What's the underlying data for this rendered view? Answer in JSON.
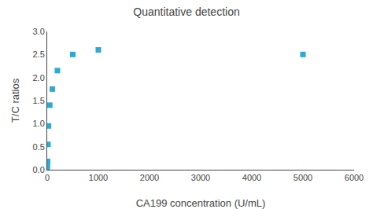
{
  "chart_data": {
    "type": "scatter",
    "title": "Quantitative detection",
    "x_label": "CA199 concentration (U/mL)",
    "y_label": "T/C ratios",
    "x": [
      1,
      3,
      8,
      15,
      25,
      50,
      100,
      200,
      500,
      1000,
      5000
    ],
    "values": [
      0.05,
      0.1,
      0.18,
      0.55,
      0.95,
      1.4,
      1.75,
      2.15,
      2.5,
      2.6,
      2.5
    ],
    "color": "#29ABD4",
    "marker": "square",
    "xlim": [
      0,
      6000
    ],
    "xticks": [
      0,
      1000,
      2000,
      3000,
      4000,
      5000,
      6000
    ],
    "ylim": [
      0.0,
      3.0
    ],
    "yticks": [
      {
        "value": 0.0,
        "label": "0.0"
      },
      0.5,
      {
        "value": 1.0,
        "label": "1.0"
      },
      1.5,
      {
        "value": 2.0,
        "label": "2.0"
      },
      2.5,
      {
        "value": 3.0,
        "label": "3.0"
      }
    ],
    "grid": false
  }
}
